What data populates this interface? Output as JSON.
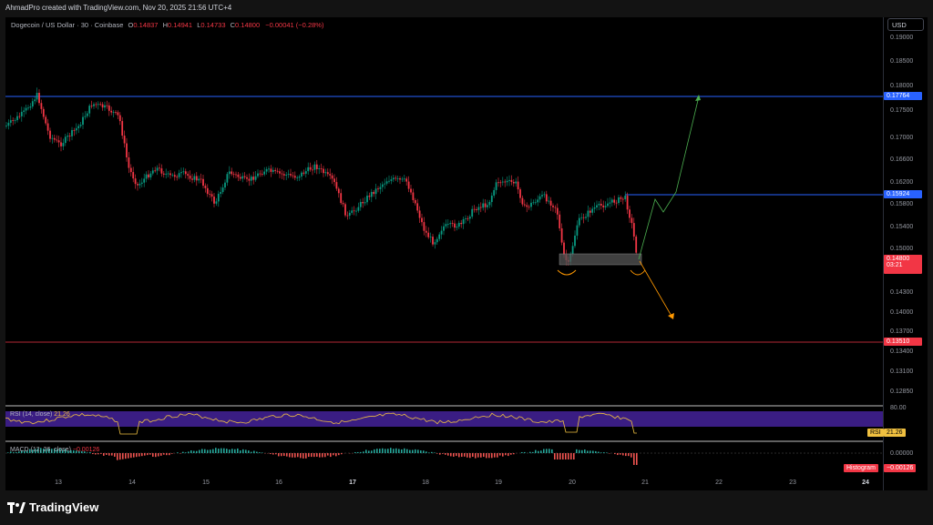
{
  "header": {
    "credit": "AhmadPro created with TradingView.com, Nov 20, 2025 21:56 UTC+4"
  },
  "legend": {
    "symbol": "Dogecoin / US Dollar · 30 · Coinbase",
    "o_label": "O",
    "o": "0.14837",
    "h_label": "H",
    "h": "0.14941",
    "l_label": "L",
    "l": "0.14733",
    "c_label": "C",
    "c": "0.14800",
    "change": "−0.00041 (−0.28%)"
  },
  "price_axis": {
    "currency": "USD",
    "ticks": [
      "0.19000",
      "0.18500",
      "0.18000",
      "0.17500",
      "0.17000",
      "0.16600",
      "0.16200",
      "0.15800",
      "0.15400",
      "0.15000",
      "0.14300",
      "0.14000",
      "0.13700",
      "0.13400",
      "0.13100",
      "0.12850"
    ],
    "levels": {
      "resistance_top": "0.17764",
      "resistance_mid": "0.15924",
      "support": "0.13510",
      "current": "0.14800",
      "countdown": "03:21"
    },
    "colors": {
      "blue": "#2962ff",
      "red": "#f23645",
      "green": "#089981"
    }
  },
  "time_axis": {
    "labels": [
      "13",
      "14",
      "15",
      "16",
      "17",
      "18",
      "19",
      "20",
      "21",
      "22",
      "23",
      "24"
    ],
    "bold": [
      "17",
      "24"
    ]
  },
  "rsi": {
    "label": "RSI (14, close)",
    "value": "21.26",
    "tag": "RSI",
    "level": "80.00"
  },
  "macd": {
    "label": "MACD (12, 26, close)",
    "value": "−0.00126",
    "hist_tag": "Histogram",
    "hist_value": "−0.00126",
    "zero": "0.00000"
  },
  "branding": {
    "name": "TradingView"
  }
}
